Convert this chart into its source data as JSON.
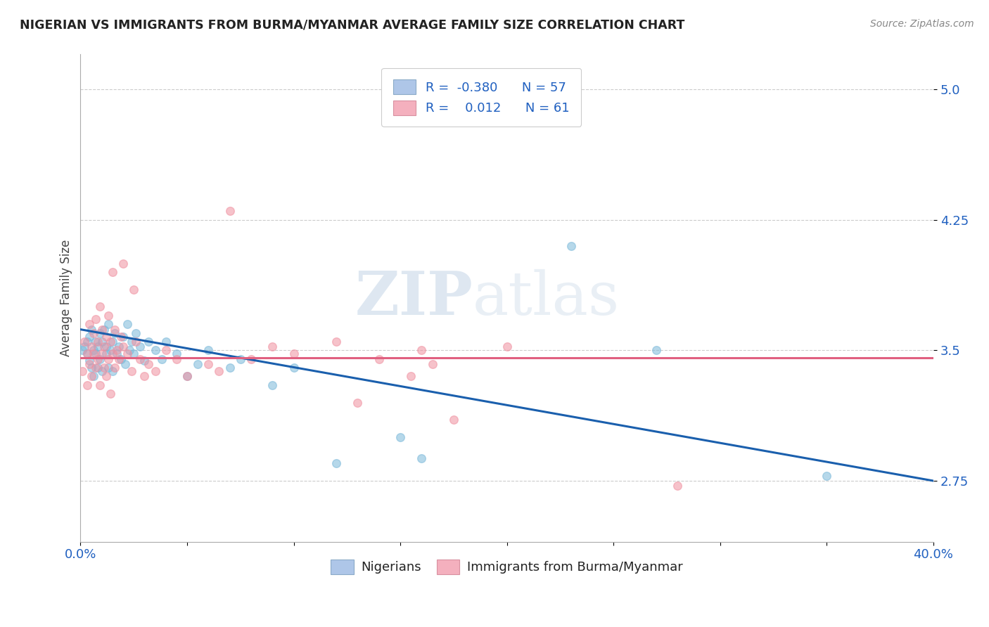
{
  "title": "NIGERIAN VS IMMIGRANTS FROM BURMA/MYANMAR AVERAGE FAMILY SIZE CORRELATION CHART",
  "source": "Source: ZipAtlas.com",
  "ylabel": "Average Family Size",
  "yticks": [
    2.75,
    3.5,
    4.25,
    5.0
  ],
  "xlim": [
    0.0,
    0.4
  ],
  "ylim": [
    2.4,
    5.2
  ],
  "watermark_zip": "ZIP",
  "watermark_atlas": "atlas",
  "legend_bottom": [
    "Nigerians",
    "Immigrants from Burma/Myanmar"
  ],
  "nigerian_color": "#7ab8d9",
  "burma_color": "#f090a0",
  "trendline_nigerian_color": "#1a5fad",
  "trendline_burma_color": "#e06080",
  "nig_trend_y0": 3.62,
  "nig_trend_y1": 2.75,
  "bur_trend_y0": 3.455,
  "bur_trend_y1": 3.455,
  "nigerian_points": [
    [
      0.001,
      3.5
    ],
    [
      0.002,
      3.52
    ],
    [
      0.003,
      3.48
    ],
    [
      0.003,
      3.55
    ],
    [
      0.004,
      3.44
    ],
    [
      0.004,
      3.58
    ],
    [
      0.005,
      3.4
    ],
    [
      0.005,
      3.62
    ],
    [
      0.006,
      3.5
    ],
    [
      0.006,
      3.35
    ],
    [
      0.007,
      3.55
    ],
    [
      0.007,
      3.48
    ],
    [
      0.008,
      3.52
    ],
    [
      0.008,
      3.4
    ],
    [
      0.009,
      3.6
    ],
    [
      0.009,
      3.45
    ],
    [
      0.01,
      3.55
    ],
    [
      0.01,
      3.38
    ],
    [
      0.011,
      3.62
    ],
    [
      0.012,
      3.48
    ],
    [
      0.012,
      3.52
    ],
    [
      0.013,
      3.4
    ],
    [
      0.013,
      3.65
    ],
    [
      0.014,
      3.5
    ],
    [
      0.015,
      3.55
    ],
    [
      0.015,
      3.38
    ],
    [
      0.016,
      3.6
    ],
    [
      0.017,
      3.48
    ],
    [
      0.018,
      3.52
    ],
    [
      0.019,
      3.45
    ],
    [
      0.02,
      3.58
    ],
    [
      0.021,
      3.42
    ],
    [
      0.022,
      3.65
    ],
    [
      0.023,
      3.5
    ],
    [
      0.024,
      3.55
    ],
    [
      0.025,
      3.48
    ],
    [
      0.026,
      3.6
    ],
    [
      0.028,
      3.52
    ],
    [
      0.03,
      3.44
    ],
    [
      0.032,
      3.55
    ],
    [
      0.035,
      3.5
    ],
    [
      0.038,
      3.45
    ],
    [
      0.04,
      3.55
    ],
    [
      0.045,
      3.48
    ],
    [
      0.05,
      3.35
    ],
    [
      0.055,
      3.42
    ],
    [
      0.06,
      3.5
    ],
    [
      0.07,
      3.4
    ],
    [
      0.075,
      3.45
    ],
    [
      0.09,
      3.3
    ],
    [
      0.1,
      3.4
    ],
    [
      0.12,
      2.85
    ],
    [
      0.15,
      3.0
    ],
    [
      0.16,
      2.88
    ],
    [
      0.23,
      4.1
    ],
    [
      0.27,
      3.5
    ],
    [
      0.35,
      2.78
    ]
  ],
  "burma_points": [
    [
      0.001,
      3.38
    ],
    [
      0.002,
      3.55
    ],
    [
      0.003,
      3.48
    ],
    [
      0.003,
      3.3
    ],
    [
      0.004,
      3.65
    ],
    [
      0.004,
      3.42
    ],
    [
      0.005,
      3.52
    ],
    [
      0.005,
      3.35
    ],
    [
      0.006,
      3.6
    ],
    [
      0.006,
      3.48
    ],
    [
      0.007,
      3.4
    ],
    [
      0.007,
      3.68
    ],
    [
      0.008,
      3.45
    ],
    [
      0.008,
      3.55
    ],
    [
      0.009,
      3.75
    ],
    [
      0.009,
      3.3
    ],
    [
      0.01,
      3.62
    ],
    [
      0.01,
      3.48
    ],
    [
      0.011,
      3.52
    ],
    [
      0.011,
      3.4
    ],
    [
      0.012,
      3.58
    ],
    [
      0.012,
      3.35
    ],
    [
      0.013,
      3.45
    ],
    [
      0.013,
      3.7
    ],
    [
      0.014,
      3.55
    ],
    [
      0.014,
      3.25
    ],
    [
      0.015,
      3.95
    ],
    [
      0.015,
      3.48
    ],
    [
      0.016,
      3.62
    ],
    [
      0.016,
      3.4
    ],
    [
      0.017,
      3.5
    ],
    [
      0.018,
      3.45
    ],
    [
      0.019,
      3.58
    ],
    [
      0.02,
      3.52
    ],
    [
      0.02,
      4.0
    ],
    [
      0.022,
      3.48
    ],
    [
      0.024,
      3.38
    ],
    [
      0.025,
      3.85
    ],
    [
      0.026,
      3.55
    ],
    [
      0.028,
      3.45
    ],
    [
      0.03,
      3.35
    ],
    [
      0.032,
      3.42
    ],
    [
      0.035,
      3.38
    ],
    [
      0.04,
      3.5
    ],
    [
      0.045,
      3.45
    ],
    [
      0.05,
      3.35
    ],
    [
      0.06,
      3.42
    ],
    [
      0.065,
      3.38
    ],
    [
      0.07,
      4.3
    ],
    [
      0.08,
      3.45
    ],
    [
      0.09,
      3.52
    ],
    [
      0.1,
      3.48
    ],
    [
      0.12,
      3.55
    ],
    [
      0.13,
      3.2
    ],
    [
      0.14,
      3.45
    ],
    [
      0.155,
      3.35
    ],
    [
      0.16,
      3.5
    ],
    [
      0.165,
      3.42
    ],
    [
      0.175,
      3.1
    ],
    [
      0.2,
      3.52
    ],
    [
      0.28,
      2.72
    ]
  ]
}
